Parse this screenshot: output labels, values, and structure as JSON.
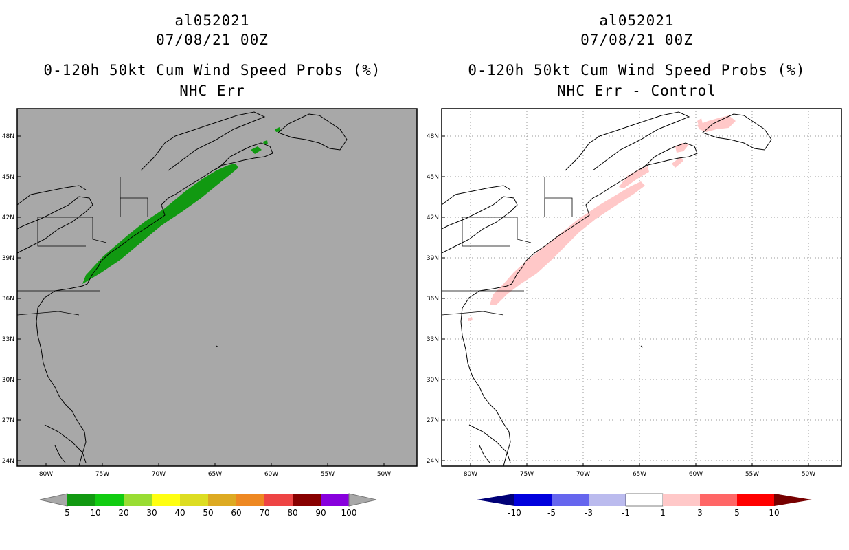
{
  "panels": [
    {
      "id": "left",
      "title_storm": "al052021",
      "title_date": "07/08/21 00Z",
      "title_product": "0-120h 50kt Cum Wind Speed Probs (%)",
      "title_subtitle": "NHC Err",
      "map_background": "#a8a8a8",
      "track_color": "#119911",
      "colorbar": {
        "colors": [
          "#119911",
          "#11cc11",
          "#99dd33",
          "#ffff11",
          "#dddd22",
          "#ddaa22",
          "#ee8822",
          "#ee4444",
          "#880000",
          "#8800dd"
        ],
        "end_color": "#a8a8a8",
        "labels": [
          "5",
          "10",
          "20",
          "30",
          "40",
          "50",
          "60",
          "70",
          "80",
          "90",
          "100"
        ]
      }
    },
    {
      "id": "right",
      "title_storm": "al052021",
      "title_date": "07/08/21 00Z",
      "title_product": "0-120h 50kt Cum Wind Speed Probs (%)",
      "title_subtitle": "NHC Err - Control",
      "map_background": "#ffffff",
      "track_color": "#ffc8c8",
      "colorbar": {
        "colors": [
          "#0000dd",
          "#6666ee",
          "#bbbbee",
          "#ffffff",
          "#ffc8c8",
          "#ff6666",
          "#ff0000"
        ],
        "end_left_color": "#000077",
        "end_right_color": "#770000",
        "labels": [
          "-10",
          "-5",
          "-3",
          "-1",
          "1",
          "3",
          "5",
          "10"
        ]
      }
    }
  ],
  "axes": {
    "lat_labels": [
      "48N",
      "45N",
      "42N",
      "39N",
      "36N",
      "33N",
      "30N",
      "27N",
      "24N"
    ],
    "lon_labels": [
      "80W",
      "75W",
      "70W",
      "65W",
      "60W",
      "55W",
      "50W"
    ]
  }
}
